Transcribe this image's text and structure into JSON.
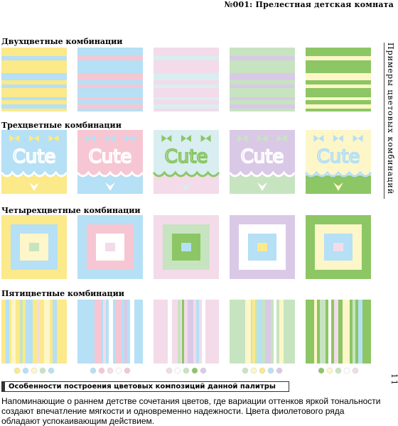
{
  "header": {
    "title": "№001: Прелестная детская комната"
  },
  "side_title": "Примеры цветовых комбинаций",
  "sections": [
    {
      "title": "Двухцветные комбинации"
    },
    {
      "title": "Трехцветные комбинации",
      "illustration_text": "Cute"
    },
    {
      "title": "Четырехцветные комбинации"
    },
    {
      "title": "Пятицветные комбинации"
    }
  ],
  "note": {
    "title": "Особенности построения цветовых композиций данной палитры",
    "text": "Напоминающие о раннем детстве сочетания цветов, где вариации оттенков яркой тональности создают впечатление мягкости и одновременно надежности. Цвета фиолетового ряда обладают успокаивающим действием."
  },
  "page_number": "11"
}
